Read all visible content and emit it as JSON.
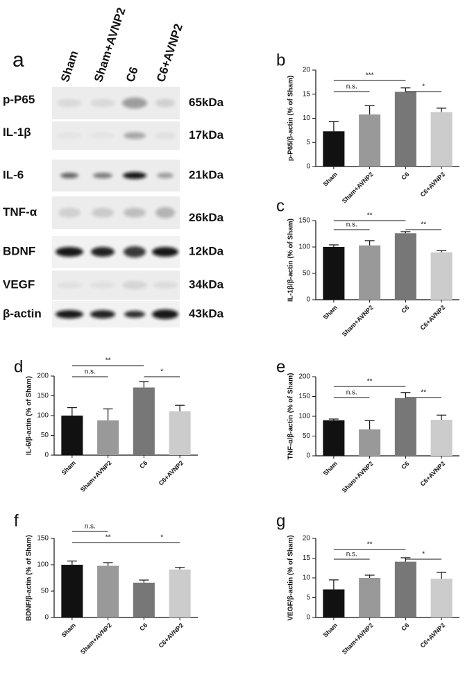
{
  "blot": {
    "label": "a",
    "lanes": [
      "Sham",
      "Sham+AVNP2",
      "C6",
      "C6+AVNP2"
    ],
    "rows": [
      {
        "protein": "p-P65",
        "size": "65kDa"
      },
      {
        "protein": "IL-1β",
        "size": "17kDa"
      },
      {
        "protein": "IL-6",
        "size": "21kDa"
      },
      {
        "protein": "TNF-α",
        "size": "26kDa"
      },
      {
        "protein": "BDNF",
        "size": "12kDa"
      },
      {
        "protein": "VEGF",
        "size": "34kDa"
      },
      {
        "protein": "β-actin",
        "size": "43kDa"
      }
    ]
  },
  "chart_data": [
    {
      "type": "bar",
      "label": "b",
      "ylabel": "p-P65/β-actin (% of Sham)",
      "categories": [
        "Sham",
        "Sham+AVNP2",
        "C6",
        "C6+AVNP2"
      ],
      "values": [
        7.3,
        10.8,
        15.5,
        11.3
      ],
      "errors": [
        2,
        1.8,
        0.8,
        0.8
      ],
      "colors": [
        "#111111",
        "#999999",
        "#777777",
        "#cccccc"
      ],
      "ylim": [
        0,
        20
      ],
      "yticks": [
        0,
        5,
        10,
        15,
        20
      ],
      "brackets": [
        {
          "text": "***",
          "from": "Sham",
          "to": "C6"
        },
        {
          "text": "n.s.",
          "from": "Sham",
          "to": "Sham+AVNP2"
        },
        {
          "text": "*",
          "from": "C6",
          "to": "C6+AVNP2"
        }
      ]
    },
    {
      "type": "bar",
      "label": "c",
      "ylabel": "IL-1β/β-actin (% of Sham)",
      "categories": [
        "Sham",
        "Sham+AVNP2",
        "C6",
        "C6+AVNP2"
      ],
      "values": [
        100,
        103,
        126,
        90
      ],
      "errors": [
        4,
        9,
        3,
        3
      ],
      "colors": [
        "#111111",
        "#999999",
        "#777777",
        "#cccccc"
      ],
      "ylim": [
        0,
        150
      ],
      "yticks": [
        0,
        50,
        100,
        150
      ],
      "brackets": [
        {
          "text": "**",
          "from": "Sham",
          "to": "C6"
        },
        {
          "text": "n.s.",
          "from": "Sham",
          "to": "Sham+AVNP2"
        },
        {
          "text": "**",
          "from": "C6",
          "to": "C6+AVNP2"
        }
      ]
    },
    {
      "type": "bar",
      "label": "d",
      "ylabel": "IL-6/β-actin (% of Sham)",
      "categories": [
        "Sham",
        "Sham+AVNP2",
        "C6",
        "C6+AVNP2"
      ],
      "values": [
        100,
        88,
        171,
        111
      ],
      "errors": [
        20,
        29,
        15,
        15
      ],
      "colors": [
        "#111111",
        "#999999",
        "#777777",
        "#cccccc"
      ],
      "ylim": [
        0,
        200
      ],
      "yticks": [
        0,
        50,
        100,
        150,
        200
      ],
      "brackets": [
        {
          "text": "**",
          "from": "Sham",
          "to": "C6"
        },
        {
          "text": "n.s.",
          "from": "Sham",
          "to": "Sham+AVNP2"
        },
        {
          "text": "*",
          "from": "C6",
          "to": "C6+AVNP2"
        }
      ]
    },
    {
      "type": "bar",
      "label": "e",
      "ylabel": "TNF-α/β-actin (% of Sham)",
      "categories": [
        "Sham",
        "Sham+AVNP2",
        "C6",
        "C6+AVNP2"
      ],
      "values": [
        90,
        67,
        146,
        91
      ],
      "errors": [
        3,
        22,
        14,
        12
      ],
      "colors": [
        "#111111",
        "#999999",
        "#777777",
        "#cccccc"
      ],
      "ylim": [
        0,
        200
      ],
      "yticks": [
        0,
        50,
        100,
        150,
        200
      ],
      "brackets": [
        {
          "text": "**",
          "from": "Sham",
          "to": "C6"
        },
        {
          "text": "n.s.",
          "from": "Sham",
          "to": "Sham+AVNP2"
        },
        {
          "text": "**",
          "from": "C6",
          "to": "C6+AVNP2"
        }
      ]
    },
    {
      "type": "bar",
      "label": "f",
      "ylabel": "BDNF/β-actin (% of Sham)",
      "categories": [
        "Sham",
        "Sham+AVNP2",
        "C6",
        "C6+AVNP2"
      ],
      "values": [
        100,
        98,
        66,
        91
      ],
      "errors": [
        7,
        6,
        5,
        4
      ],
      "colors": [
        "#111111",
        "#999999",
        "#777777",
        "#cccccc"
      ],
      "ylim": [
        0,
        150
      ],
      "yticks": [
        0,
        50,
        100,
        150
      ],
      "brackets": [
        {
          "text": "n.s.",
          "from": "Sham",
          "to": "Sham+AVNP2"
        },
        {
          "text": "**",
          "from": "Sham",
          "to": "C6"
        },
        {
          "text": "*",
          "from": "C6",
          "to": "C6+AVNP2"
        }
      ]
    },
    {
      "type": "bar",
      "label": "g",
      "ylabel": "VEGF/β-actin (% of Sham)",
      "categories": [
        "Sham",
        "Sham+AVNP2",
        "C6",
        "C6+AVNP2"
      ],
      "values": [
        7.1,
        10,
        14.1,
        9.8
      ],
      "errors": [
        2.4,
        0.7,
        1,
        1.6
      ],
      "colors": [
        "#111111",
        "#999999",
        "#777777",
        "#cccccc"
      ],
      "ylim": [
        0,
        20
      ],
      "yticks": [
        0,
        5,
        10,
        15,
        20
      ],
      "brackets": [
        {
          "text": "**",
          "from": "Sham",
          "to": "C6"
        },
        {
          "text": "n.s.",
          "from": "Sham",
          "to": "Sham+AVNP2"
        },
        {
          "text": "*",
          "from": "C6",
          "to": "C6+AVNP2"
        }
      ]
    }
  ]
}
